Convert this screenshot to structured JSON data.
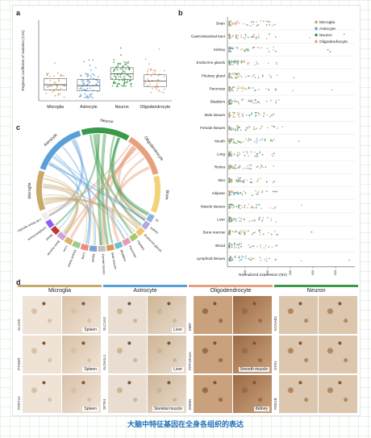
{
  "caption": "大脑中特征基因在全身各组织的表达",
  "panels": {
    "a": "a",
    "b": "b",
    "c": "c",
    "d": "d"
  },
  "colors": {
    "microglia": "#c8a96a",
    "astrocyte": "#5aa0d8",
    "neuron": "#3a9a4a",
    "oligodendrocyte": "#e7a07e"
  },
  "chart_data": [
    {
      "type": "scatter",
      "panel": "a",
      "ylabel": "Regional coefficient of variation (CVs)",
      "categories": [
        "Microglia",
        "Astrocyte",
        "Neuron",
        "Oligodendrocyte"
      ],
      "series": [
        {
          "name": "Microglia",
          "median": 0.18
        },
        {
          "name": "Astrocyte",
          "median": 0.17
        },
        {
          "name": "Neuron",
          "median": 0.3
        },
        {
          "name": "Oligodendrocyte",
          "median": 0.22
        }
      ]
    },
    {
      "type": "scatter",
      "panel": "b",
      "xlabel": "Normalized expression (NX)",
      "xticks": [
        "100",
        "200",
        "300",
        "400",
        "500"
      ],
      "legend": [
        "Microglia",
        "Astrocyte",
        "Neuron",
        "Oligodendrocyte"
      ],
      "legend_position": "top-right",
      "categories": [
        "Brain",
        "Gastrointestinal tract",
        "Kidney",
        "Endocrine glands",
        "Pituitary gland",
        "Pancreas",
        "Bladders",
        "Male tissues",
        "Female tissues",
        "Mouth",
        "Lung",
        "Retina",
        "Skin",
        "Adipose",
        "Muscle tissues",
        "Liver",
        "Bone marrow",
        "Blood",
        "Lymphoid tissues"
      ]
    }
  ],
  "chord": {
    "top_groups": [
      "Neuron",
      "Oligodendrocyte",
      "Brain",
      "Astrocyte",
      "Microglia"
    ],
    "tissues": [
      "GI",
      "Kidney",
      "Endocrine glands",
      "Pituitary",
      "Pancreas",
      "Bladders",
      "Male tissues",
      "Female tissues",
      "Mouth",
      "Lung",
      "Muscle tissue",
      "Liver",
      "Bone marrow",
      "Blood",
      "Lymphoid tissue",
      "Low tissue specificity"
    ]
  },
  "micro": {
    "columns": [
      {
        "title": "Microglia",
        "color": "#c8a96a",
        "genes": [
          "ALOX5",
          "PTGER",
          "P2RY12"
        ],
        "tissues": [
          "Spleen",
          "Spleen",
          "Spleen"
        ]
      },
      {
        "title": "Astrocyte",
        "color": "#5aa0d8",
        "genes": [
          "SLC1A3",
          "ALDH1L1",
          "SPTA1"
        ],
        "tissues": [
          "Liver",
          "Liver",
          "Skeletal muscle"
        ]
      },
      {
        "title": "Oligodendrocyte",
        "color": "#e7a07e",
        "genes": [
          "MBP",
          "PPP1R14A",
          "ERMN"
        ],
        "tissues": [
          "",
          "Smooth muscle",
          "Kidney"
        ]
      },
      {
        "title": "Neuron",
        "color": "#3a9a4a",
        "genes": [
          "KCNAB2",
          "SYN1",
          "PDE1B"
        ],
        "tissues": [
          "",
          "",
          ""
        ]
      }
    ]
  }
}
